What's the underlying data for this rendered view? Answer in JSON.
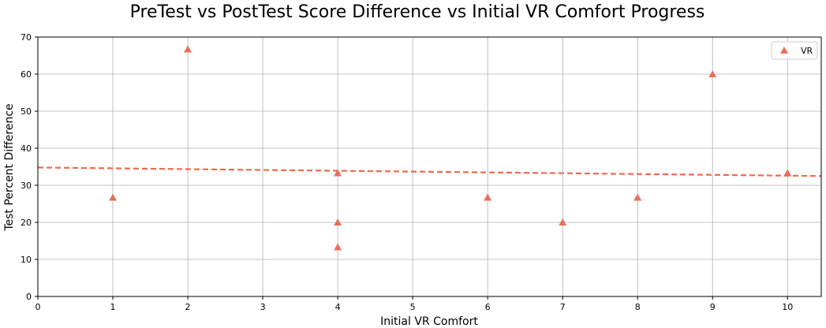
{
  "chart_data": {
    "type": "scatter",
    "title": "PreTest vs PostTest Score Difference vs Initial VR Comfort Progress",
    "xlabel": "Initial VR Comfort",
    "ylabel": "Test Percent Difference",
    "xlim": [
      0,
      10.45
    ],
    "ylim": [
      0,
      70
    ],
    "xticks": [
      0,
      1,
      2,
      3,
      4,
      5,
      6,
      7,
      8,
      9,
      10
    ],
    "yticks": [
      0,
      10,
      20,
      30,
      40,
      50,
      60,
      70
    ],
    "grid": true,
    "legend_position": "top-right",
    "series": [
      {
        "name": "VR",
        "marker": "triangle",
        "color": "#e8705a",
        "points": [
          {
            "x": 1,
            "y": 26.7
          },
          {
            "x": 2,
            "y": 66.7
          },
          {
            "x": 4,
            "y": 33.3
          },
          {
            "x": 4,
            "y": 20.0
          },
          {
            "x": 4,
            "y": 13.3
          },
          {
            "x": 6,
            "y": 26.7
          },
          {
            "x": 7,
            "y": 20.0
          },
          {
            "x": 8,
            "y": 26.7
          },
          {
            "x": 9,
            "y": 60.0
          },
          {
            "x": 10,
            "y": 33.3
          }
        ]
      }
    ],
    "trendline": {
      "style": "dashed",
      "color": "#f0694d",
      "start": {
        "x": 0,
        "y": 34.8
      },
      "end": {
        "x": 10.45,
        "y": 32.5
      }
    }
  }
}
